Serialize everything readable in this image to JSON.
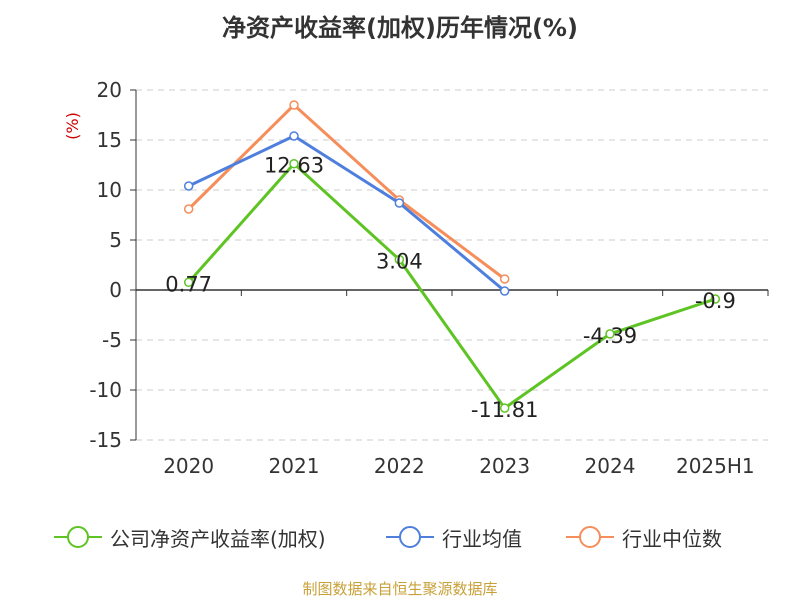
{
  "title": "净资产收益率(加权)历年情况(%)",
  "source": "制图数据来自恒生聚源数据库",
  "chart_data": {
    "type": "line",
    "categories": [
      "2020",
      "2021",
      "2022",
      "2023",
      "2024",
      "2025H1"
    ],
    "ylabel": "(%)",
    "ylim": [
      -15,
      20
    ],
    "yticks": [
      20,
      15,
      10,
      5,
      0,
      -5,
      -10,
      -15
    ],
    "grid": true,
    "legend_position": "bottom",
    "series": [
      {
        "name": "公司净资产收益率(加权)",
        "color": "#5ec424",
        "values": [
          0.77,
          12.63,
          3.04,
          -11.81,
          -4.39,
          -0.9
        ],
        "data_labels": [
          "0.77",
          "12.63",
          "3.04",
          "-11.81",
          "-4.39",
          "-0.9"
        ]
      },
      {
        "name": "行业均值",
        "color": "#4e7fdc",
        "values": [
          10.4,
          15.4,
          8.7,
          -0.1,
          null,
          null
        ]
      },
      {
        "name": "行业中位数",
        "color": "#f58e5a",
        "values": [
          8.1,
          18.5,
          9.0,
          1.1,
          null,
          null
        ]
      }
    ]
  }
}
